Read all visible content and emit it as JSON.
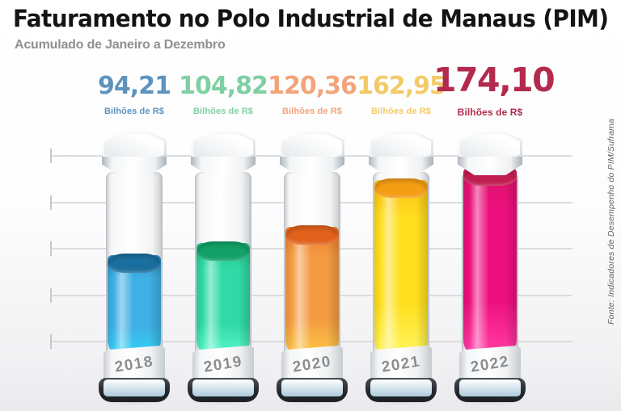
{
  "header": {
    "title": "Faturamento no Polo Industrial de Manaus (PIM)",
    "subtitle": "Acumulado de Janeiro a Dezembro"
  },
  "source_note": "Fonte: Indicadores de Desempenho do PIM/Suframa",
  "chart_data": {
    "type": "bar",
    "title": "Faturamento no Polo Industrial de Manaus (PIM)",
    "subtitle": "Acumulado de Janeiro a Dezembro",
    "unit_label": "Bilhões de R$",
    "categories": [
      "2018",
      "2019",
      "2020",
      "2021",
      "2022"
    ],
    "values": [
      94.21,
      104.82,
      120.36,
      162.95,
      174.1
    ],
    "value_labels": [
      "94,21",
      "104,82",
      "120,36",
      "162,95",
      "174,10"
    ],
    "highlight_index": 4,
    "legend": "none",
    "grid": "horizontal",
    "gridline_count": 5,
    "source": "Fonte: Indicadores de Desempenho do PIM/Suframa"
  },
  "bars": [
    {
      "year": "2018",
      "value_label": "94,21",
      "label_color": "#5e93bd",
      "highlight": false,
      "liquid": {
        "surface": "#1a6f9e",
        "top": "#2288bd",
        "body": "#3fb0e4",
        "glow": "#35d0f5"
      }
    },
    {
      "year": "2019",
      "value_label": "104,82",
      "label_color": "#7fd0a4",
      "highlight": false,
      "liquid": {
        "surface": "#12a168",
        "top": "#1dbd80",
        "body": "#31d9a6",
        "glow": "#55f5c8"
      }
    },
    {
      "year": "2020",
      "value_label": "120,36",
      "label_color": "#f2a47b",
      "highlight": false,
      "liquid": {
        "surface": "#e2611c",
        "top": "#ec7a28",
        "body": "#f49a43",
        "glow": "#fbc544"
      }
    },
    {
      "year": "2021",
      "value_label": "162,95",
      "label_color": "#f2ca68",
      "highlight": false,
      "liquid": {
        "surface": "#f59e14",
        "top": "#fbbd18",
        "body": "#ffdf1e",
        "glow": "#fff45a"
      }
    },
    {
      "year": "2022",
      "value_label": "174,10",
      "label_color": "#b32a4d",
      "highlight": true,
      "liquid": {
        "surface": "#c01d50",
        "top": "#d81468",
        "body": "#ee0f7e",
        "glow": "#ff39a2"
      }
    }
  ]
}
